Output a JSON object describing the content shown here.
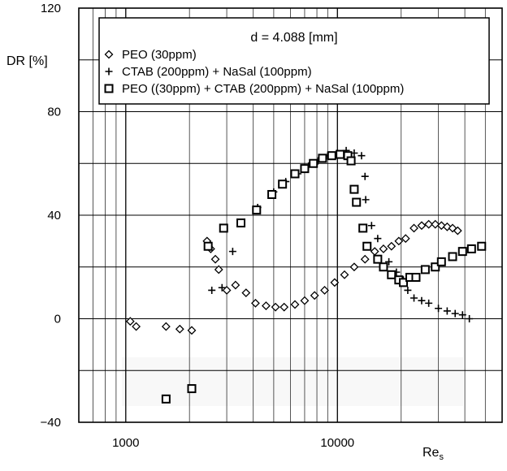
{
  "chart_data": {
    "type": "scatter",
    "title": "d = 4.088 [mm]",
    "ylabel": "DR [%]",
    "xlabel": "Re",
    "xlabel_sub": "s",
    "xscale": "log",
    "xlim": [
      600,
      60000
    ],
    "ylim": [
      -40,
      120
    ],
    "grid": true,
    "legend_position": "top-left",
    "x_ticks": [
      {
        "value": 1000,
        "label": "1000"
      },
      {
        "value": 10000,
        "label": "10000"
      }
    ],
    "y_ticks": [
      {
        "value": -40,
        "label": "−40"
      },
      {
        "value": 0,
        "label": "0"
      },
      {
        "value": 40,
        "label": "40"
      },
      {
        "value": 80,
        "label": "80"
      },
      {
        "value": 120,
        "label": "120"
      }
    ],
    "series": [
      {
        "name": "PEO (30ppm)",
        "marker": "diamond",
        "points": [
          [
            1050,
            -1
          ],
          [
            1120,
            -3
          ],
          [
            1550,
            -3
          ],
          [
            1800,
            -4
          ],
          [
            2050,
            -4.5
          ],
          [
            2420,
            30
          ],
          [
            2520,
            27
          ],
          [
            2650,
            23
          ],
          [
            2750,
            19
          ],
          [
            3000,
            11
          ],
          [
            3300,
            13
          ],
          [
            3700,
            10
          ],
          [
            4100,
            6
          ],
          [
            4600,
            5
          ],
          [
            5100,
            4.5
          ],
          [
            5600,
            4.5
          ],
          [
            6300,
            5.5
          ],
          [
            7000,
            7
          ],
          [
            7800,
            9
          ],
          [
            8700,
            11
          ],
          [
            9700,
            14
          ],
          [
            10800,
            17
          ],
          [
            12000,
            20
          ],
          [
            13500,
            23
          ],
          [
            15000,
            26
          ],
          [
            16500,
            27
          ],
          [
            18000,
            28
          ],
          [
            19500,
            30
          ],
          [
            21000,
            31
          ],
          [
            23000,
            35
          ],
          [
            25000,
            36
          ],
          [
            27000,
            36.5
          ],
          [
            29000,
            36.5
          ],
          [
            31000,
            36
          ],
          [
            33000,
            35.5
          ],
          [
            35000,
            35
          ],
          [
            37000,
            34
          ]
        ]
      },
      {
        "name": "CTAB (200ppm) + NaSal (100ppm)",
        "marker": "plus",
        "points": [
          [
            2550,
            11
          ],
          [
            2850,
            12
          ],
          [
            3200,
            26
          ],
          [
            4200,
            43
          ],
          [
            5000,
            49
          ],
          [
            5700,
            53
          ],
          [
            6500,
            56
          ],
          [
            7300,
            59
          ],
          [
            8100,
            61
          ],
          [
            9000,
            63
          ],
          [
            10000,
            64
          ],
          [
            11000,
            65
          ],
          [
            12000,
            64
          ],
          [
            13000,
            63
          ],
          [
            13500,
            55
          ],
          [
            13600,
            46
          ],
          [
            14500,
            36
          ],
          [
            15500,
            31
          ],
          [
            17500,
            22
          ],
          [
            19000,
            18
          ],
          [
            20500,
            15
          ],
          [
            21500,
            11
          ],
          [
            23000,
            8
          ],
          [
            25000,
            7
          ],
          [
            27000,
            6
          ],
          [
            30000,
            4
          ],
          [
            33000,
            3
          ],
          [
            36000,
            2
          ],
          [
            39000,
            1.5
          ],
          [
            42000,
            0
          ]
        ]
      },
      {
        "name": "PEO ((30ppm) + CTAB (200ppm) + NaSal (100ppm)",
        "marker": "square",
        "points": [
          [
            1550,
            -31
          ],
          [
            2050,
            -27
          ],
          [
            2450,
            28
          ],
          [
            2900,
            35
          ],
          [
            3500,
            37
          ],
          [
            4150,
            42
          ],
          [
            4900,
            48
          ],
          [
            5500,
            52
          ],
          [
            6300,
            56
          ],
          [
            7000,
            58
          ],
          [
            7700,
            60
          ],
          [
            8500,
            62
          ],
          [
            9400,
            63
          ],
          [
            10300,
            63.5
          ],
          [
            11200,
            63
          ],
          [
            11600,
            61
          ],
          [
            12000,
            50
          ],
          [
            12300,
            45
          ],
          [
            13200,
            35
          ],
          [
            13800,
            28
          ],
          [
            15500,
            23
          ],
          [
            16500,
            20
          ],
          [
            18000,
            17
          ],
          [
            19500,
            15
          ],
          [
            20500,
            14
          ],
          [
            22000,
            16
          ],
          [
            23500,
            16
          ],
          [
            26000,
            19
          ],
          [
            29000,
            20
          ],
          [
            31000,
            22
          ],
          [
            35000,
            24
          ],
          [
            39000,
            26
          ],
          [
            43000,
            27
          ],
          [
            48000,
            28
          ]
        ]
      }
    ]
  }
}
